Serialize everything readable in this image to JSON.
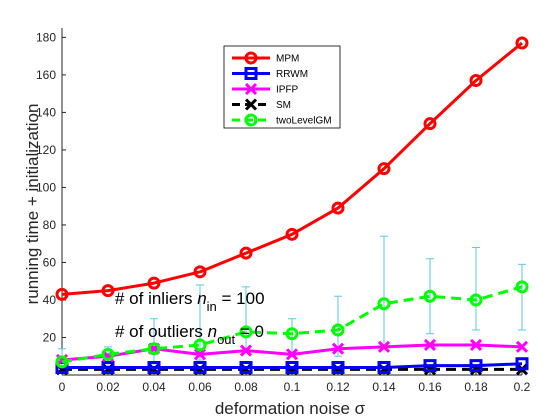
{
  "chart_data": {
    "type": "line",
    "xlabel": "deformation noise σ",
    "ylabel": "running time + initialization",
    "x": [
      0,
      0.02,
      0.04,
      0.06,
      0.08,
      0.1,
      0.12,
      0.14,
      0.16,
      0.18,
      0.2
    ],
    "xticks": [
      "0",
      "0.02",
      "0.04",
      "0.06",
      "0.08",
      "0.1",
      "0.12",
      "0.14",
      "0.16",
      "0.18",
      "0.2"
    ],
    "yticks": [
      "20",
      "40",
      "60",
      "80",
      "100",
      "120",
      "140",
      "160",
      "180"
    ],
    "xlim": [
      0,
      0.2
    ],
    "ylim": [
      0,
      185
    ],
    "grid": false,
    "legend_position": "top-center",
    "series": [
      {
        "name": "MPM",
        "color": "#ff0000",
        "marker": "circle",
        "linestyle": "solid",
        "values": [
          43,
          45,
          49,
          55,
          65,
          75,
          89,
          110,
          134,
          157,
          177
        ]
      },
      {
        "name": "RRWM",
        "color": "#0000ff",
        "marker": "square",
        "linestyle": "solid",
        "values": [
          4,
          4,
          4,
          4,
          4,
          4,
          4,
          4,
          5,
          5,
          6
        ]
      },
      {
        "name": "IPFP",
        "color": "#ff00ff",
        "marker": "x",
        "linestyle": "solid",
        "values": [
          8,
          10,
          14,
          11,
          13,
          11,
          14,
          15,
          16,
          16,
          15
        ]
      },
      {
        "name": "SM",
        "color": "#000000",
        "marker": "x",
        "linestyle": "dashed",
        "values": [
          3,
          3,
          3,
          3,
          3,
          3,
          3,
          3,
          3,
          3,
          3
        ]
      },
      {
        "name": "twoLevelGM",
        "color": "#00ff00",
        "marker": "circle",
        "linestyle": "dashed",
        "values": [
          7,
          11,
          14,
          16,
          23,
          22,
          24,
          38,
          42,
          40,
          47
        ],
        "error_low": [
          2,
          4,
          6,
          8,
          12,
          10,
          10,
          14,
          22,
          24,
          24
        ],
        "error_high": [
          14,
          15,
          30,
          48,
          47,
          30,
          42,
          74,
          62,
          68,
          59
        ]
      }
    ],
    "annotations": [
      {
        "prefix": "# of inliers ",
        "var": "n",
        "sub": "in",
        "suffix": " = 100"
      },
      {
        "prefix": "# of outliers ",
        "var": "n",
        "sub": "out",
        "suffix": " = 0"
      }
    ]
  }
}
